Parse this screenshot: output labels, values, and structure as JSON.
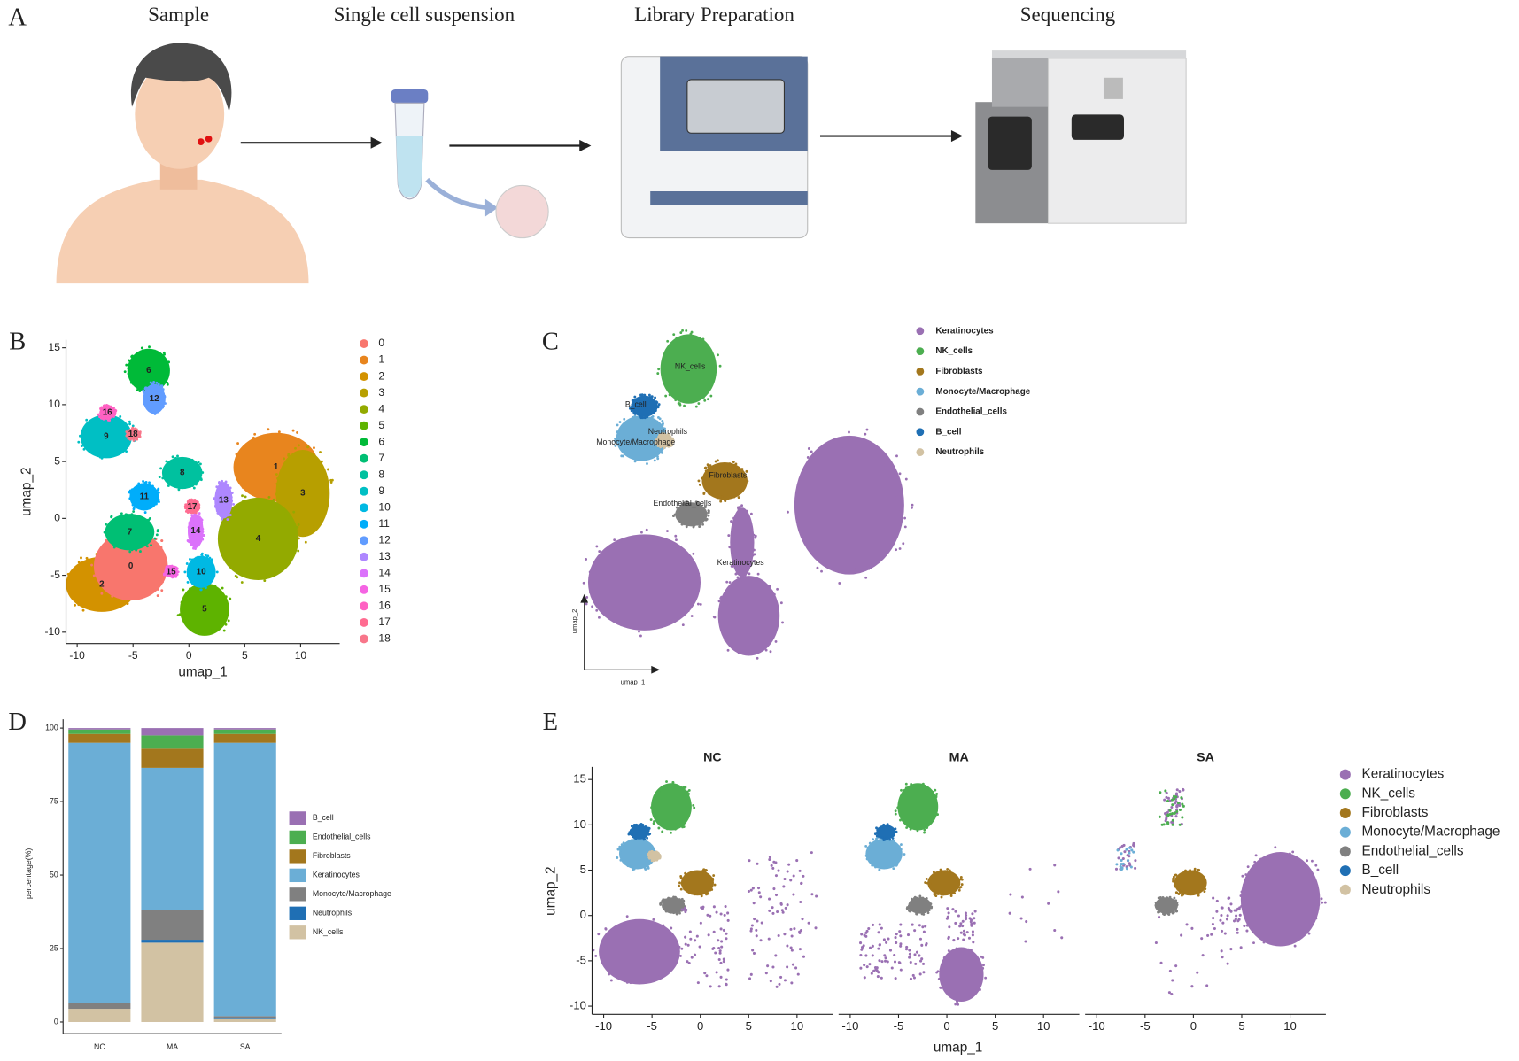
{
  "panel_labels": [
    "A",
    "B",
    "C",
    "D",
    "E"
  ],
  "workflow": {
    "steps": [
      "Sample",
      "Single cell suspension",
      "Library Preparation",
      "Sequencing"
    ]
  },
  "chart_data": [
    {
      "type": "scatter",
      "x_label": "umap_1",
      "y_label": "umap_2",
      "xlim": [
        -11,
        13.5
      ],
      "ylim": [
        -11,
        15.7
      ],
      "xticks": [
        -10,
        -5,
        0,
        5,
        10
      ],
      "yticks": [
        -10,
        -5,
        0,
        5,
        10,
        15
      ],
      "legend": {
        "names": [
          "0",
          "1",
          "2",
          "3",
          "4",
          "5",
          "6",
          "7",
          "8",
          "9",
          "10",
          "11",
          "12",
          "13",
          "14",
          "15",
          "16",
          "17",
          "18"
        ],
        "colors": [
          "#F8766D",
          "#E8851E",
          "#D39200",
          "#B79F00",
          "#93AA00",
          "#5EB300",
          "#00BA38",
          "#00BF74",
          "#00C19F",
          "#00BFC4",
          "#00B9E3",
          "#00ADFA",
          "#619CFF",
          "#AE87FF",
          "#DB72FB",
          "#F564E3",
          "#FF61C3",
          "#FF6C91",
          "#F8768A"
        ]
      }
    },
    {
      "type": "scatter",
      "x_label": "umap_1",
      "y_label": "umap_2",
      "legend": {
        "names": [
          "Keratinocytes",
          "NK_cells",
          "Fibroblasts",
          "Monocyte/Macrophage",
          "Endothelial_cells",
          "B_cell",
          "Neutrophils"
        ],
        "colors": [
          "#9a70b3",
          "#4cae50",
          "#a3771d",
          "#6baed6",
          "#808080",
          "#1f6fb4",
          "#d2c2a3"
        ]
      },
      "cluster_labels": [
        "NK_cells",
        "B_cell",
        "Neutrophils",
        "Monocyte/Macrophage",
        "Fibroblasts",
        "Endothelial_cells",
        "Keratinocytes"
      ]
    },
    {
      "type": "bar",
      "stacked": true,
      "y_label": "percentage(%)",
      "categories": [
        "NC",
        "MA",
        "SA"
      ],
      "ylim": [
        -2,
        103
      ],
      "yticks": [
        0,
        25,
        50,
        75,
        100
      ],
      "series": [
        {
          "name": "B_cell",
          "color": "#9a70b3",
          "values": [
            0.5,
            2.5,
            0.5
          ]
        },
        {
          "name": "Endothelial_cells",
          "color": "#4cae50",
          "values": [
            1.5,
            4.5,
            1.5
          ]
        },
        {
          "name": "Fibroblasts",
          "color": "#a3771d",
          "values": [
            3,
            6.5,
            3
          ]
        },
        {
          "name": "Keratinocytes",
          "color": "#6baed6",
          "values": [
            88.5,
            48.5,
            93
          ]
        },
        {
          "name": "Monocyte/Macrophage",
          "color": "#808080",
          "values": [
            2,
            10,
            0.5
          ]
        },
        {
          "name": "Neutrophils",
          "color": "#1f6fb4",
          "values": [
            0,
            1,
            0.5
          ]
        },
        {
          "name": "NK_cells",
          "color": "#d2c2a3",
          "values": [
            4.5,
            27,
            1
          ]
        }
      ]
    },
    {
      "type": "scatter",
      "facets": [
        "NC",
        "MA",
        "SA"
      ],
      "x_label": "umap_1",
      "y_label": "umap_2",
      "xlim": [
        -11.2,
        13.7
      ],
      "ylim": [
        -10.9,
        16.4
      ],
      "xticks": [
        -10,
        -5,
        0,
        5,
        10
      ],
      "yticks": [
        -10,
        -5,
        0,
        5,
        10,
        15
      ],
      "legend": {
        "names": [
          "Keratinocytes",
          "NK_cells",
          "Fibroblasts",
          "Monocyte/Macrophage",
          "Endothelial_cells",
          "B_cell",
          "Neutrophils"
        ],
        "colors": [
          "#9a70b3",
          "#4cae50",
          "#a3771d",
          "#6baed6",
          "#808080",
          "#1f6fb4",
          "#d2c2a3"
        ]
      }
    }
  ]
}
